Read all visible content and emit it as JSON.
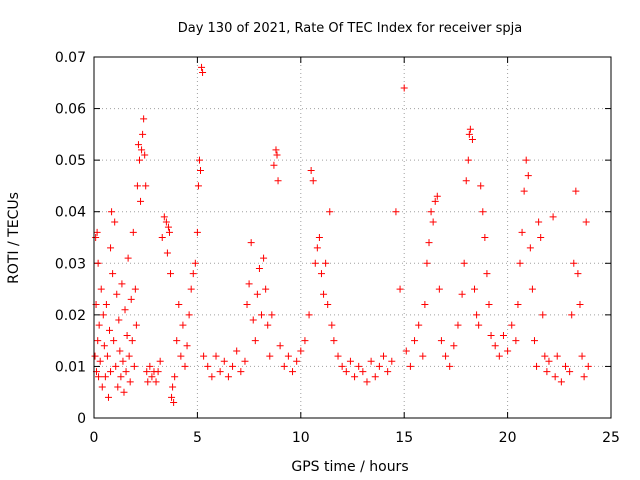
{
  "chart_data": {
    "type": "scatter",
    "title": "Day 130 of 2021, Rate Of TEC Index for receiver spja",
    "xlabel": "GPS time / hours",
    "ylabel": "ROTI / TECUs",
    "xlim": [
      0,
      25
    ],
    "ylim": [
      0,
      0.07
    ],
    "xticks": [
      0,
      5,
      10,
      15,
      20,
      25
    ],
    "yticks": [
      0,
      0.01,
      0.02,
      0.03,
      0.04,
      0.05,
      0.06,
      0.07
    ],
    "xtick_labels": [
      "0",
      "5",
      "10",
      "15",
      "20",
      "25"
    ],
    "ytick_labels": [
      "0",
      "0.01",
      "0.02",
      "0.03",
      "0.04",
      "0.05",
      "0.06",
      "0.07"
    ],
    "grid": true,
    "marker": "+",
    "color": "#ff0000",
    "series": [
      {
        "name": "ROTI",
        "points": [
          [
            0.05,
            0.012
          ],
          [
            0.08,
            0.035
          ],
          [
            0.1,
            0.022
          ],
          [
            0.12,
            0.009
          ],
          [
            0.15,
            0.036
          ],
          [
            0.18,
            0.015
          ],
          [
            0.2,
            0.03
          ],
          [
            0.22,
            0.008
          ],
          [
            0.25,
            0.018
          ],
          [
            0.3,
            0.011
          ],
          [
            0.35,
            0.025
          ],
          [
            0.4,
            0.006
          ],
          [
            0.45,
            0.02
          ],
          [
            0.5,
            0.014
          ],
          [
            0.55,
            0.008
          ],
          [
            0.6,
            0.022
          ],
          [
            0.65,
            0.012
          ],
          [
            0.7,
            0.004
          ],
          [
            0.75,
            0.017
          ],
          [
            0.8,
            0.009
          ],
          [
            0.8,
            0.033
          ],
          [
            0.85,
            0.04
          ],
          [
            0.9,
            0.028
          ],
          [
            0.95,
            0.015
          ],
          [
            1.0,
            0.038
          ],
          [
            1.05,
            0.01
          ],
          [
            1.1,
            0.024
          ],
          [
            1.15,
            0.006
          ],
          [
            1.2,
            0.019
          ],
          [
            1.25,
            0.013
          ],
          [
            1.3,
            0.008
          ],
          [
            1.35,
            0.026
          ],
          [
            1.4,
            0.011
          ],
          [
            1.45,
            0.005
          ],
          [
            1.5,
            0.021
          ],
          [
            1.55,
            0.009
          ],
          [
            1.6,
            0.016
          ],
          [
            1.65,
            0.031
          ],
          [
            1.7,
            0.012
          ],
          [
            1.75,
            0.007
          ],
          [
            1.8,
            0.023
          ],
          [
            1.85,
            0.015
          ],
          [
            1.9,
            0.036
          ],
          [
            1.95,
            0.01
          ],
          [
            2.0,
            0.025
          ],
          [
            2.05,
            0.018
          ],
          [
            2.1,
            0.045
          ],
          [
            2.15,
            0.053
          ],
          [
            2.2,
            0.05
          ],
          [
            2.25,
            0.042
          ],
          [
            2.3,
            0.052
          ],
          [
            2.35,
            0.055
          ],
          [
            2.4,
            0.058
          ],
          [
            2.45,
            0.051
          ],
          [
            2.5,
            0.045
          ],
          [
            2.55,
            0.009
          ],
          [
            2.6,
            0.007
          ],
          [
            2.7,
            0.01
          ],
          [
            2.8,
            0.008
          ],
          [
            2.9,
            0.009
          ],
          [
            3.0,
            0.007
          ],
          [
            3.1,
            0.009
          ],
          [
            3.2,
            0.011
          ],
          [
            3.3,
            0.035
          ],
          [
            3.4,
            0.039
          ],
          [
            3.5,
            0.038
          ],
          [
            3.55,
            0.032
          ],
          [
            3.6,
            0.037
          ],
          [
            3.65,
            0.036
          ],
          [
            3.7,
            0.028
          ],
          [
            3.75,
            0.004
          ],
          [
            3.8,
            0.006
          ],
          [
            3.85,
            0.003
          ],
          [
            3.9,
            0.008
          ],
          [
            4.0,
            0.015
          ],
          [
            4.1,
            0.022
          ],
          [
            4.2,
            0.012
          ],
          [
            4.3,
            0.018
          ],
          [
            4.4,
            0.01
          ],
          [
            4.5,
            0.014
          ],
          [
            4.6,
            0.02
          ],
          [
            4.7,
            0.025
          ],
          [
            4.8,
            0.028
          ],
          [
            4.9,
            0.03
          ],
          [
            5.0,
            0.036
          ],
          [
            5.05,
            0.045
          ],
          [
            5.1,
            0.05
          ],
          [
            5.15,
            0.048
          ],
          [
            5.2,
            0.068
          ],
          [
            5.25,
            0.067
          ],
          [
            5.3,
            0.012
          ],
          [
            5.5,
            0.01
          ],
          [
            5.7,
            0.008
          ],
          [
            5.9,
            0.012
          ],
          [
            6.1,
            0.009
          ],
          [
            6.3,
            0.011
          ],
          [
            6.5,
            0.008
          ],
          [
            6.7,
            0.01
          ],
          [
            6.9,
            0.013
          ],
          [
            7.1,
            0.009
          ],
          [
            7.3,
            0.011
          ],
          [
            7.4,
            0.022
          ],
          [
            7.5,
            0.026
          ],
          [
            7.6,
            0.034
          ],
          [
            7.7,
            0.019
          ],
          [
            7.8,
            0.015
          ],
          [
            7.9,
            0.024
          ],
          [
            8.0,
            0.029
          ],
          [
            8.1,
            0.02
          ],
          [
            8.2,
            0.031
          ],
          [
            8.3,
            0.025
          ],
          [
            8.4,
            0.018
          ],
          [
            8.5,
            0.012
          ],
          [
            8.6,
            0.02
          ],
          [
            8.7,
            0.049
          ],
          [
            8.8,
            0.052
          ],
          [
            8.85,
            0.051
          ],
          [
            8.9,
            0.046
          ],
          [
            9.0,
            0.014
          ],
          [
            9.2,
            0.01
          ],
          [
            9.4,
            0.012
          ],
          [
            9.6,
            0.009
          ],
          [
            9.8,
            0.011
          ],
          [
            10.0,
            0.013
          ],
          [
            10.2,
            0.015
          ],
          [
            10.4,
            0.02
          ],
          [
            10.5,
            0.048
          ],
          [
            10.6,
            0.046
          ],
          [
            10.7,
            0.03
          ],
          [
            10.8,
            0.033
          ],
          [
            10.9,
            0.035
          ],
          [
            11.0,
            0.028
          ],
          [
            11.1,
            0.024
          ],
          [
            11.2,
            0.03
          ],
          [
            11.3,
            0.022
          ],
          [
            11.4,
            0.04
          ],
          [
            11.5,
            0.018
          ],
          [
            11.6,
            0.015
          ],
          [
            11.8,
            0.012
          ],
          [
            12.0,
            0.01
          ],
          [
            12.2,
            0.009
          ],
          [
            12.4,
            0.011
          ],
          [
            12.6,
            0.008
          ],
          [
            12.8,
            0.01
          ],
          [
            13.0,
            0.009
          ],
          [
            13.2,
            0.007
          ],
          [
            13.4,
            0.011
          ],
          [
            13.6,
            0.008
          ],
          [
            13.8,
            0.01
          ],
          [
            14.0,
            0.012
          ],
          [
            14.2,
            0.009
          ],
          [
            14.4,
            0.011
          ],
          [
            14.6,
            0.04
          ],
          [
            14.8,
            0.025
          ],
          [
            15.0,
            0.064
          ],
          [
            15.1,
            0.013
          ],
          [
            15.3,
            0.01
          ],
          [
            15.5,
            0.015
          ],
          [
            15.7,
            0.018
          ],
          [
            15.9,
            0.012
          ],
          [
            16.0,
            0.022
          ],
          [
            16.1,
            0.03
          ],
          [
            16.2,
            0.034
          ],
          [
            16.3,
            0.04
          ],
          [
            16.4,
            0.038
          ],
          [
            16.5,
            0.042
          ],
          [
            16.6,
            0.043
          ],
          [
            16.7,
            0.025
          ],
          [
            16.8,
            0.015
          ],
          [
            17.0,
            0.012
          ],
          [
            17.2,
            0.01
          ],
          [
            17.4,
            0.014
          ],
          [
            17.6,
            0.018
          ],
          [
            17.8,
            0.024
          ],
          [
            17.9,
            0.03
          ],
          [
            18.0,
            0.046
          ],
          [
            18.1,
            0.05
          ],
          [
            18.15,
            0.055
          ],
          [
            18.2,
            0.056
          ],
          [
            18.3,
            0.054
          ],
          [
            18.4,
            0.025
          ],
          [
            18.5,
            0.02
          ],
          [
            18.6,
            0.018
          ],
          [
            18.7,
            0.045
          ],
          [
            18.8,
            0.04
          ],
          [
            18.9,
            0.035
          ],
          [
            19.0,
            0.028
          ],
          [
            19.1,
            0.022
          ],
          [
            19.2,
            0.016
          ],
          [
            19.4,
            0.014
          ],
          [
            19.6,
            0.012
          ],
          [
            19.8,
            0.016
          ],
          [
            20.0,
            0.013
          ],
          [
            20.2,
            0.018
          ],
          [
            20.4,
            0.015
          ],
          [
            20.5,
            0.022
          ],
          [
            20.6,
            0.03
          ],
          [
            20.7,
            0.036
          ],
          [
            20.8,
            0.044
          ],
          [
            20.9,
            0.05
          ],
          [
            21.0,
            0.047
          ],
          [
            21.1,
            0.033
          ],
          [
            21.2,
            0.025
          ],
          [
            21.3,
            0.015
          ],
          [
            21.4,
            0.01
          ],
          [
            21.5,
            0.038
          ],
          [
            21.6,
            0.035
          ],
          [
            21.7,
            0.02
          ],
          [
            21.8,
            0.012
          ],
          [
            21.9,
            0.009
          ],
          [
            22.0,
            0.011
          ],
          [
            22.2,
            0.039
          ],
          [
            22.3,
            0.008
          ],
          [
            22.4,
            0.012
          ],
          [
            22.6,
            0.007
          ],
          [
            22.8,
            0.01
          ],
          [
            23.0,
            0.009
          ],
          [
            23.1,
            0.02
          ],
          [
            23.2,
            0.03
          ],
          [
            23.3,
            0.044
          ],
          [
            23.4,
            0.028
          ],
          [
            23.5,
            0.022
          ],
          [
            23.6,
            0.012
          ],
          [
            23.7,
            0.008
          ],
          [
            23.8,
            0.038
          ],
          [
            23.9,
            0.01
          ]
        ]
      }
    ]
  }
}
